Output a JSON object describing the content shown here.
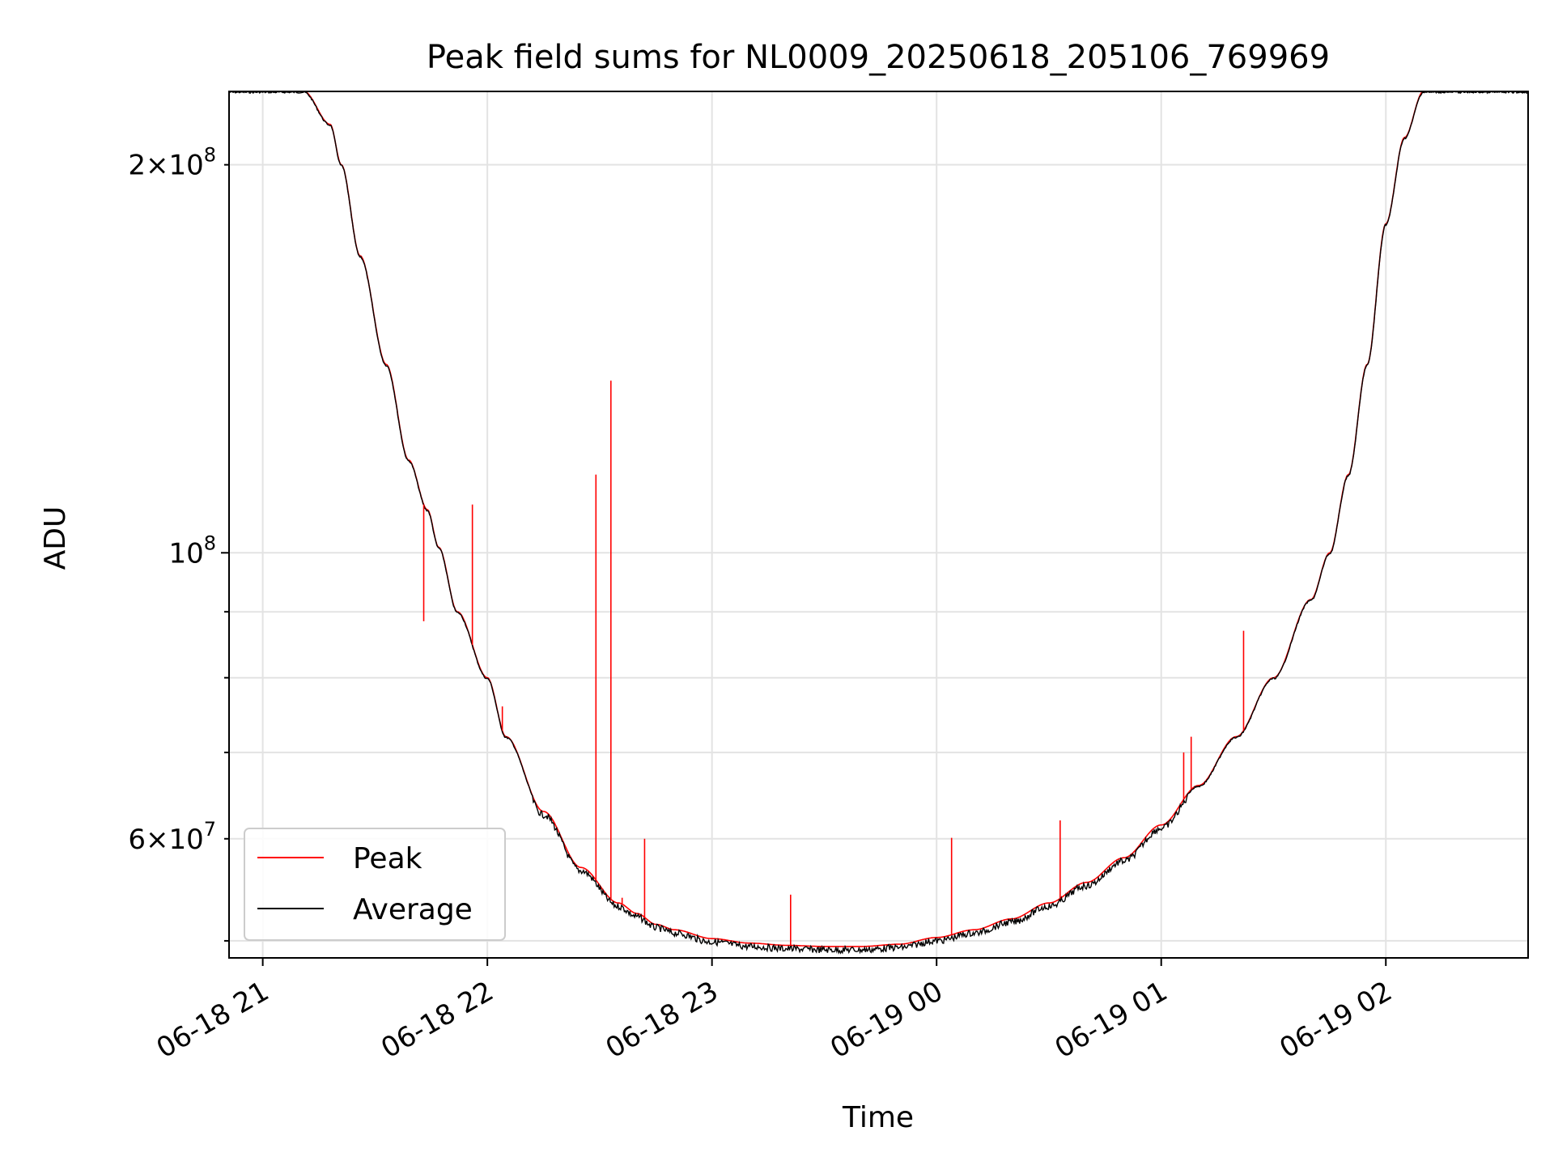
{
  "chart_data": {
    "type": "line",
    "title": "Peak field sums for NL0009_20250618_205106_769969",
    "xlabel": "Time",
    "ylabel": "ADU",
    "y_scale": "log",
    "grid": true,
    "legend_position": "lower-left",
    "xlim": [
      "2025-06-18 20:51",
      "2025-06-19 02:38"
    ],
    "ylim": [
      48500000,
      228000000
    ],
    "x_ticks": [
      "06-18 21",
      "06-18 22",
      "06-18 23",
      "06-19 00",
      "06-19 01",
      "06-19 02"
    ],
    "y_ticks_major": [
      {
        "value": 100000000,
        "mantissa": "",
        "base": "10",
        "exp": "8"
      }
    ],
    "y_ticks_minor_labeled": [
      {
        "value": 200000000,
        "mantissa": "2×",
        "base": "10",
        "exp": "8"
      },
      {
        "value": 60000000,
        "mantissa": "6×",
        "base": "10",
        "exp": "7"
      }
    ],
    "y_ticks_minor": [
      50000000,
      70000000,
      80000000,
      90000000
    ],
    "series": [
      {
        "name": "Peak",
        "color": "#ff0000",
        "x": [
          "2025-06-18 20:51",
          "2025-06-18 21:11",
          "2025-06-18 21:18",
          "2025-06-18 21:21",
          "2025-06-18 21:26",
          "2025-06-18 21:33",
          "2025-06-18 21:39",
          "2025-06-18 21:44",
          "2025-06-18 21:47",
          "2025-06-18 21:52",
          "2025-06-18 22:00",
          "2025-06-18 22:05",
          "2025-06-18 22:15",
          "2025-06-18 22:25",
          "2025-06-18 22:35",
          "2025-06-18 22:40",
          "2025-06-18 22:45",
          "2025-06-18 22:50",
          "2025-06-18 23:00",
          "2025-06-18 23:10",
          "2025-06-18 23:20",
          "2025-06-18 23:30",
          "2025-06-18 23:40",
          "2025-06-18 23:50",
          "2025-06-19 00:00",
          "2025-06-19 00:10",
          "2025-06-19 00:20",
          "2025-06-19 00:30",
          "2025-06-19 00:40",
          "2025-06-19 00:50",
          "2025-06-19 01:00",
          "2025-06-19 01:10",
          "2025-06-19 01:20",
          "2025-06-19 01:30",
          "2025-06-19 01:40",
          "2025-06-19 01:45",
          "2025-06-19 01:50",
          "2025-06-19 01:55",
          "2025-06-19 02:00",
          "2025-06-19 02:05",
          "2025-06-19 02:10",
          "2025-06-19 02:38"
        ],
        "values": [
          228000000,
          228000000,
          215000000,
          200000000,
          170000000,
          140000000,
          118000000,
          108000000,
          101000000,
          90000000,
          80000000,
          72000000,
          63000000,
          57000000,
          53500000,
          52500000,
          51500000,
          51000000,
          50200000,
          49800000,
          49600000,
          49500000,
          49500000,
          49700000,
          50300000,
          51000000,
          52000000,
          53500000,
          55500000,
          58000000,
          61500000,
          66000000,
          72000000,
          80000000,
          92000000,
          100000000,
          115000000,
          140000000,
          180000000,
          210000000,
          228000000,
          228000000
        ],
        "spikes": [
          {
            "x": "2025-06-18 21:43",
            "value": 88500000
          },
          {
            "x": "2025-06-18 21:56",
            "value": 109000000
          },
          {
            "x": "2025-06-18 22:04",
            "value": 76000000
          },
          {
            "x": "2025-06-18 22:29",
            "value": 115000000
          },
          {
            "x": "2025-06-18 22:33",
            "value": 136000000
          },
          {
            "x": "2025-06-18 22:36",
            "value": 54000000
          },
          {
            "x": "2025-06-18 22:42",
            "value": 60000000
          },
          {
            "x": "2025-06-18 23:21",
            "value": 54300000
          },
          {
            "x": "2025-06-19 00:04",
            "value": 60100000
          },
          {
            "x": "2025-06-19 00:33",
            "value": 62000000
          },
          {
            "x": "2025-06-19 01:06",
            "value": 70000000
          },
          {
            "x": "2025-06-19 01:08",
            "value": 72000000
          },
          {
            "x": "2025-06-19 01:22",
            "value": 87000000
          }
        ]
      },
      {
        "name": "Average",
        "color": "#000000",
        "same_curve_as": "Peak",
        "noise": "slightly below Peak near the minimum"
      }
    ]
  }
}
